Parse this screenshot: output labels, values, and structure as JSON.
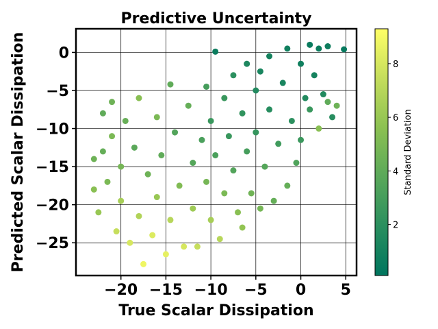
{
  "chart_data": {
    "type": "scatter",
    "title": "Predictive Uncertainty",
    "xlabel": "True Scalar Dissipation",
    "ylabel": "Predicted Scalar Dissipation",
    "xlim": [
      -25,
      6.2
    ],
    "ylim": [
      -29.3,
      3.1
    ],
    "xticks": [
      -20,
      -15,
      -10,
      -5,
      0,
      5
    ],
    "yticks": [
      0,
      -5,
      -10,
      -15,
      -20,
      -25
    ],
    "xtick_labels": [
      "−20",
      "−15",
      "−10",
      "−5",
      "0",
      "5"
    ],
    "ytick_labels": [
      "0",
      "−5",
      "−10",
      "−15",
      "−20",
      "−25"
    ],
    "grid": true,
    "legend": "none",
    "colorbar": {
      "label": "Standard Deviation",
      "range": [
        0.1,
        9.3
      ],
      "ticks": [
        2,
        4,
        6,
        8
      ],
      "tick_labels": [
        "2",
        "4",
        "6",
        "8"
      ],
      "colormap": [
        "#00755e",
        "#2a8f5f",
        "#5aa85a",
        "#8cc152",
        "#c5dd5c",
        "#ffff66"
      ]
    },
    "points": [
      {
        "x": -23.0,
        "y": -14.0,
        "std": 4.5
      },
      {
        "x": -23.0,
        "y": -18.0,
        "std": 5.5
      },
      {
        "x": -22.5,
        "y": -21.0,
        "std": 6.0
      },
      {
        "x": -22.0,
        "y": -8.0,
        "std": 4.0
      },
      {
        "x": -22.0,
        "y": -13.0,
        "std": 4.2
      },
      {
        "x": -21.5,
        "y": -17.0,
        "std": 5.0
      },
      {
        "x": -21.0,
        "y": -6.5,
        "std": 4.5
      },
      {
        "x": -21.0,
        "y": -11.0,
        "std": 5.0
      },
      {
        "x": -20.5,
        "y": -23.5,
        "std": 7.5
      },
      {
        "x": -20.0,
        "y": -15.0,
        "std": 4.8
      },
      {
        "x": -20.0,
        "y": -19.5,
        "std": 6.5
      },
      {
        "x": -19.5,
        "y": -9.0,
        "std": 4.3
      },
      {
        "x": -19.0,
        "y": -25.0,
        "std": 8.0
      },
      {
        "x": -18.5,
        "y": -12.5,
        "std": 3.8
      },
      {
        "x": -18.0,
        "y": -6.0,
        "std": 5.5
      },
      {
        "x": -18.0,
        "y": -21.5,
        "std": 6.8
      },
      {
        "x": -17.5,
        "y": -27.8,
        "std": 8.8
      },
      {
        "x": -17.0,
        "y": -16.0,
        "std": 4.5
      },
      {
        "x": -16.5,
        "y": -24.0,
        "std": 8.2
      },
      {
        "x": -16.0,
        "y": -8.5,
        "std": 5.0
      },
      {
        "x": -16.0,
        "y": -19.0,
        "std": 6.0
      },
      {
        "x": -15.5,
        "y": -13.5,
        "std": 4.0
      },
      {
        "x": -15.0,
        "y": -26.5,
        "std": 8.5
      },
      {
        "x": -14.5,
        "y": -4.2,
        "std": 4.0
      },
      {
        "x": -14.5,
        "y": -22.0,
        "std": 7.0
      },
      {
        "x": -14.0,
        "y": -10.5,
        "std": 3.5
      },
      {
        "x": -13.5,
        "y": -17.5,
        "std": 5.2
      },
      {
        "x": -13.0,
        "y": -25.5,
        "std": 8.0
      },
      {
        "x": -12.5,
        "y": -7.0,
        "std": 4.2
      },
      {
        "x": -12.0,
        "y": -14.5,
        "std": 3.6
      },
      {
        "x": -12.0,
        "y": -20.5,
        "std": 6.2
      },
      {
        "x": -11.5,
        "y": -25.5,
        "std": 7.5
      },
      {
        "x": -11.0,
        "y": -11.5,
        "std": 3.2
      },
      {
        "x": -10.5,
        "y": -4.5,
        "std": 3.0
      },
      {
        "x": -10.5,
        "y": -17.0,
        "std": 4.8
      },
      {
        "x": -10.0,
        "y": -9.0,
        "std": 2.5
      },
      {
        "x": -10.0,
        "y": -22.0,
        "std": 6.5
      },
      {
        "x": -9.5,
        "y": 0.1,
        "std": 0.6
      },
      {
        "x": -9.5,
        "y": -13.5,
        "std": 3.2
      },
      {
        "x": -9.0,
        "y": -24.5,
        "std": 7.0
      },
      {
        "x": -8.5,
        "y": -6.0,
        "std": 2.5
      },
      {
        "x": -8.5,
        "y": -18.5,
        "std": 5.0
      },
      {
        "x": -8.0,
        "y": -11.0,
        "std": 2.5
      },
      {
        "x": -7.5,
        "y": -3.0,
        "std": 2.0
      },
      {
        "x": -7.5,
        "y": -15.5,
        "std": 3.5
      },
      {
        "x": -7.0,
        "y": -21.0,
        "std": 5.5
      },
      {
        "x": -6.5,
        "y": -8.0,
        "std": 2.2
      },
      {
        "x": -6.5,
        "y": -23.0,
        "std": 5.8
      },
      {
        "x": -6.0,
        "y": -1.5,
        "std": 1.4
      },
      {
        "x": -6.0,
        "y": -13.0,
        "std": 3.0
      },
      {
        "x": -5.5,
        "y": -18.5,
        "std": 4.6
      },
      {
        "x": -5.0,
        "y": -5.0,
        "std": 1.6
      },
      {
        "x": -5.0,
        "y": -10.5,
        "std": 2.4
      },
      {
        "x": -4.5,
        "y": -20.5,
        "std": 4.8
      },
      {
        "x": -4.5,
        "y": -2.5,
        "std": 1.2
      },
      {
        "x": -4.0,
        "y": -15.0,
        "std": 3.6
      },
      {
        "x": -3.5,
        "y": -7.5,
        "std": 1.8
      },
      {
        "x": -3.5,
        "y": -0.5,
        "std": 1.0
      },
      {
        "x": -3.0,
        "y": -19.5,
        "std": 4.2
      },
      {
        "x": -2.5,
        "y": -12.0,
        "std": 2.8
      },
      {
        "x": -2.0,
        "y": -4.0,
        "std": 1.2
      },
      {
        "x": -1.5,
        "y": -17.5,
        "std": 4.2
      },
      {
        "x": -1.5,
        "y": 0.5,
        "std": 0.8
      },
      {
        "x": -1.0,
        "y": -9.0,
        "std": 2.0
      },
      {
        "x": -0.5,
        "y": -14.5,
        "std": 3.4
      },
      {
        "x": 0.0,
        "y": -1.5,
        "std": 0.8
      },
      {
        "x": 0.0,
        "y": -11.5,
        "std": 2.6
      },
      {
        "x": 0.5,
        "y": -6.0,
        "std": 1.6
      },
      {
        "x": 1.0,
        "y": 1.0,
        "std": 0.5
      },
      {
        "x": 1.0,
        "y": -7.5,
        "std": 2.5
      },
      {
        "x": 1.5,
        "y": -3.0,
        "std": 1.0
      },
      {
        "x": 2.0,
        "y": -10.0,
        "std": 5.5
      },
      {
        "x": 2.0,
        "y": 0.5,
        "std": 0.6
      },
      {
        "x": 2.5,
        "y": -5.5,
        "std": 1.6
      },
      {
        "x": 3.0,
        "y": 0.8,
        "std": 0.7
      },
      {
        "x": 3.0,
        "y": -6.5,
        "std": 4.0
      },
      {
        "x": 3.5,
        "y": -8.5,
        "std": 1.8
      },
      {
        "x": 4.0,
        "y": -7.0,
        "std": 4.5
      },
      {
        "x": 4.8,
        "y": 0.4,
        "std": 0.4
      }
    ]
  }
}
